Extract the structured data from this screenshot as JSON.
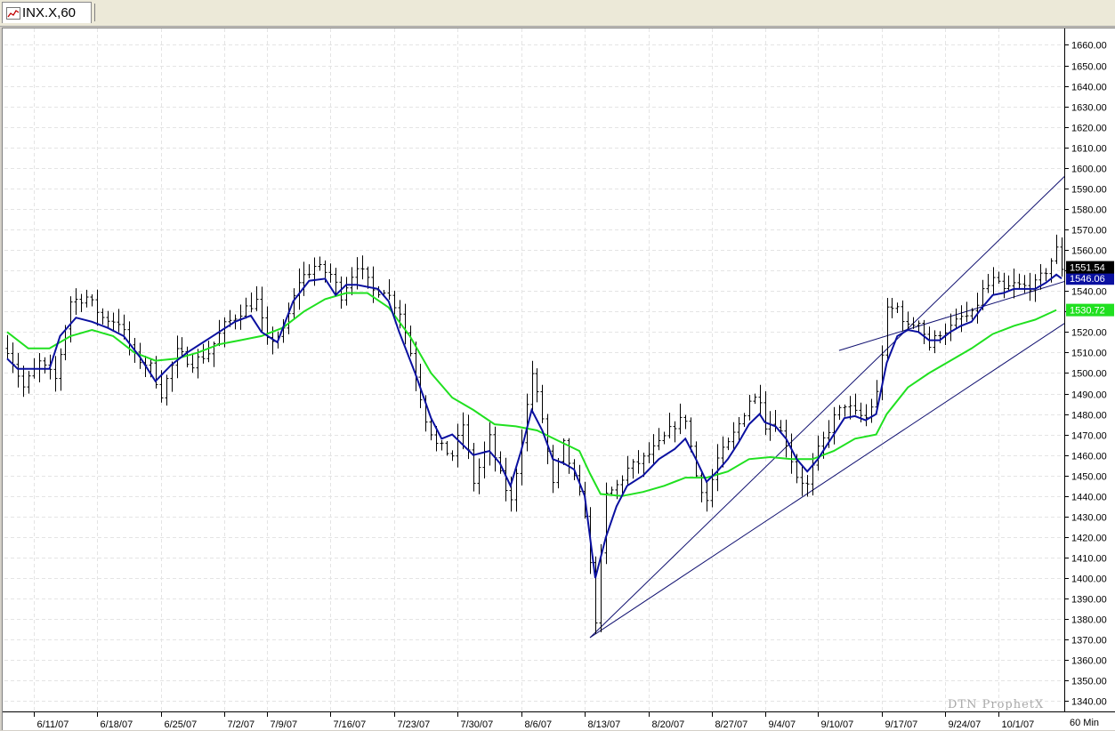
{
  "tab": {
    "label": "INX.X,60",
    "icon": "chart-icon"
  },
  "watermark": "DTN ProphetX",
  "interval_label": "60 Min",
  "chart_data": {
    "type": "line",
    "subtype": "ohlc-bar",
    "symbol": "INX.X",
    "ylim": [
      1335,
      1668
    ],
    "yticks": [
      1340,
      1350,
      1360,
      1370,
      1380,
      1390,
      1400,
      1410,
      1420,
      1430,
      1440,
      1450,
      1460,
      1470,
      1480,
      1490,
      1500,
      1510,
      1520,
      1530,
      1540,
      1550,
      1560,
      1570,
      1580,
      1590,
      1600,
      1610,
      1620,
      1630,
      1640,
      1650,
      1660
    ],
    "x_tick_labels": [
      "6/11/07",
      "6/18/07",
      "6/25/07",
      "7/2/07",
      "7/9/07",
      "7/16/07",
      "7/23/07",
      "7/30/07",
      "8/6/07",
      "8/13/07",
      "8/20/07",
      "8/27/07",
      "9/4/07",
      "9/10/07",
      "9/17/07",
      "9/24/07",
      "10/1/07"
    ],
    "x_tick_index": [
      5,
      17,
      29,
      41,
      49,
      61,
      73,
      85,
      97,
      109,
      121,
      133,
      143,
      153,
      165,
      177,
      187
    ],
    "n_bars": 200,
    "grid": true,
    "colors": {
      "price": "#000000",
      "ma_fast": "#0a10a0",
      "ma_slow": "#20e020",
      "trendline": "#101070"
    },
    "last_price": {
      "label": "1551.54",
      "value": 1551.54,
      "bg": "#000000"
    },
    "ma_fast_last": {
      "label": "1546.06",
      "value": 1546.06,
      "bg": "#0a10a0"
    },
    "ma_slow_last": {
      "label": "1530.72",
      "value": 1530.72,
      "bg": "#20e020"
    },
    "price_path": [
      [
        0,
        1512
      ],
      [
        3,
        1493
      ],
      [
        6,
        1505
      ],
      [
        9,
        1497
      ],
      [
        12,
        1535
      ],
      [
        15,
        1537
      ],
      [
        18,
        1527
      ],
      [
        21,
        1525
      ],
      [
        24,
        1508
      ],
      [
        27,
        1503
      ],
      [
        29,
        1490
      ],
      [
        32,
        1510
      ],
      [
        35,
        1505
      ],
      [
        38,
        1510
      ],
      [
        41,
        1523
      ],
      [
        44,
        1530
      ],
      [
        47,
        1535
      ],
      [
        49,
        1515
      ],
      [
        52,
        1520
      ],
      [
        55,
        1545
      ],
      [
        58,
        1552
      ],
      [
        61,
        1548
      ],
      [
        63,
        1538
      ],
      [
        66,
        1553
      ],
      [
        69,
        1540
      ],
      [
        71,
        1541
      ],
      [
        74,
        1530
      ],
      [
        76,
        1510
      ],
      [
        79,
        1478
      ],
      [
        81,
        1465
      ],
      [
        84,
        1460
      ],
      [
        86,
        1475
      ],
      [
        88,
        1447
      ],
      [
        91,
        1468
      ],
      [
        93,
        1450
      ],
      [
        95,
        1437
      ],
      [
        97,
        1468
      ],
      [
        99,
        1500
      ],
      [
        101,
        1478
      ],
      [
        103,
        1445
      ],
      [
        105,
        1465
      ],
      [
        107,
        1448
      ],
      [
        109,
        1432
      ],
      [
        111,
        1380
      ],
      [
        113,
        1440
      ],
      [
        115,
        1445
      ],
      [
        117,
        1453
      ],
      [
        120,
        1458
      ],
      [
        123,
        1465
      ],
      [
        126,
        1475
      ],
      [
        128,
        1478
      ],
      [
        130,
        1450
      ],
      [
        132,
        1438
      ],
      [
        134,
        1458
      ],
      [
        136,
        1465
      ],
      [
        138,
        1475
      ],
      [
        140,
        1487
      ],
      [
        142,
        1488
      ],
      [
        143,
        1475
      ],
      [
        145,
        1476
      ],
      [
        147,
        1466
      ],
      [
        149,
        1450
      ],
      [
        151,
        1445
      ],
      [
        153,
        1462
      ],
      [
        156,
        1478
      ],
      [
        158,
        1485
      ],
      [
        160,
        1480
      ],
      [
        162,
        1478
      ],
      [
        164,
        1490
      ],
      [
        166,
        1530
      ],
      [
        168,
        1532
      ],
      [
        170,
        1522
      ],
      [
        172,
        1526
      ],
      [
        174,
        1513
      ],
      [
        176,
        1520
      ],
      [
        178,
        1522
      ],
      [
        180,
        1527
      ],
      [
        182,
        1528
      ],
      [
        184,
        1540
      ],
      [
        186,
        1545
      ],
      [
        188,
        1540
      ],
      [
        190,
        1543
      ],
      [
        192,
        1542
      ],
      [
        194,
        1543
      ],
      [
        196,
        1550
      ],
      [
        198,
        1560
      ],
      [
        199,
        1551.5
      ]
    ],
    "ma_fast_path": [
      [
        0,
        1507
      ],
      [
        2,
        1502
      ],
      [
        5,
        1502
      ],
      [
        8,
        1502
      ],
      [
        10,
        1518
      ],
      [
        13,
        1527
      ],
      [
        16,
        1525
      ],
      [
        19,
        1522
      ],
      [
        22,
        1518
      ],
      [
        25,
        1508
      ],
      [
        28,
        1496
      ],
      [
        31,
        1504
      ],
      [
        34,
        1510
      ],
      [
        37,
        1515
      ],
      [
        40,
        1520
      ],
      [
        43,
        1525
      ],
      [
        46,
        1528
      ],
      [
        48,
        1520
      ],
      [
        51,
        1515
      ],
      [
        54,
        1535
      ],
      [
        57,
        1545
      ],
      [
        60,
        1546
      ],
      [
        62,
        1538
      ],
      [
        64,
        1543
      ],
      [
        66,
        1543
      ],
      [
        70,
        1541
      ],
      [
        72,
        1535
      ],
      [
        74,
        1520
      ],
      [
        77,
        1500
      ],
      [
        80,
        1478
      ],
      [
        82,
        1468
      ],
      [
        84,
        1470
      ],
      [
        86,
        1465
      ],
      [
        88,
        1460
      ],
      [
        91,
        1462
      ],
      [
        93,
        1456
      ],
      [
        95,
        1445
      ],
      [
        97,
        1462
      ],
      [
        99,
        1482
      ],
      [
        101,
        1472
      ],
      [
        103,
        1458
      ],
      [
        105,
        1456
      ],
      [
        107,
        1453
      ],
      [
        109,
        1440
      ],
      [
        111,
        1400
      ],
      [
        113,
        1420
      ],
      [
        115,
        1435
      ],
      [
        117,
        1445
      ],
      [
        120,
        1450
      ],
      [
        123,
        1458
      ],
      [
        126,
        1463
      ],
      [
        128,
        1468
      ],
      [
        130,
        1458
      ],
      [
        132,
        1447
      ],
      [
        134,
        1452
      ],
      [
        136,
        1458
      ],
      [
        138,
        1466
      ],
      [
        140,
        1475
      ],
      [
        142,
        1480
      ],
      [
        143,
        1476
      ],
      [
        145,
        1474
      ],
      [
        147,
        1468
      ],
      [
        149,
        1458
      ],
      [
        151,
        1452
      ],
      [
        153,
        1458
      ],
      [
        156,
        1470
      ],
      [
        158,
        1478
      ],
      [
        160,
        1479
      ],
      [
        162,
        1477
      ],
      [
        164,
        1480
      ],
      [
        166,
        1505
      ],
      [
        168,
        1518
      ],
      [
        170,
        1521
      ],
      [
        172,
        1520
      ],
      [
        174,
        1516
      ],
      [
        176,
        1516
      ],
      [
        178,
        1520
      ],
      [
        180,
        1523
      ],
      [
        182,
        1525
      ],
      [
        184,
        1532
      ],
      [
        186,
        1538
      ],
      [
        188,
        1539
      ],
      [
        190,
        1541
      ],
      [
        192,
        1541
      ],
      [
        194,
        1541
      ],
      [
        196,
        1544
      ],
      [
        198,
        1548
      ],
      [
        199,
        1546.06
      ]
    ],
    "ma_slow_path": [
      [
        0,
        1520
      ],
      [
        4,
        1512
      ],
      [
        8,
        1512
      ],
      [
        12,
        1518
      ],
      [
        16,
        1521
      ],
      [
        20,
        1518
      ],
      [
        24,
        1510
      ],
      [
        28,
        1506
      ],
      [
        32,
        1507
      ],
      [
        36,
        1510
      ],
      [
        40,
        1514
      ],
      [
        44,
        1516
      ],
      [
        48,
        1518
      ],
      [
        52,
        1522
      ],
      [
        56,
        1530
      ],
      [
        60,
        1536
      ],
      [
        64,
        1539
      ],
      [
        68,
        1539
      ],
      [
        72,
        1532
      ],
      [
        76,
        1518
      ],
      [
        80,
        1500
      ],
      [
        84,
        1488
      ],
      [
        88,
        1482
      ],
      [
        92,
        1475
      ],
      [
        96,
        1474
      ],
      [
        100,
        1472
      ],
      [
        104,
        1467
      ],
      [
        108,
        1462
      ],
      [
        110,
        1451
      ],
      [
        112,
        1441
      ],
      [
        116,
        1440
      ],
      [
        120,
        1442
      ],
      [
        124,
        1445
      ],
      [
        128,
        1449
      ],
      [
        132,
        1449
      ],
      [
        136,
        1452
      ],
      [
        140,
        1458
      ],
      [
        144,
        1459
      ],
      [
        148,
        1458
      ],
      [
        152,
        1458
      ],
      [
        156,
        1462
      ],
      [
        160,
        1468
      ],
      [
        164,
        1470
      ],
      [
        166,
        1480
      ],
      [
        170,
        1493
      ],
      [
        174,
        1500
      ],
      [
        178,
        1506
      ],
      [
        182,
        1512
      ],
      [
        186,
        1519
      ],
      [
        190,
        1523
      ],
      [
        194,
        1526
      ],
      [
        198,
        1530.72
      ]
    ],
    "trendlines": [
      [
        [
          110,
          1371
        ],
        [
          200,
          1597
        ]
      ],
      [
        [
          110,
          1371
        ],
        [
          200,
          1525
        ]
      ],
      [
        [
          157,
          1511
        ],
        [
          200,
          1545
        ]
      ]
    ]
  }
}
